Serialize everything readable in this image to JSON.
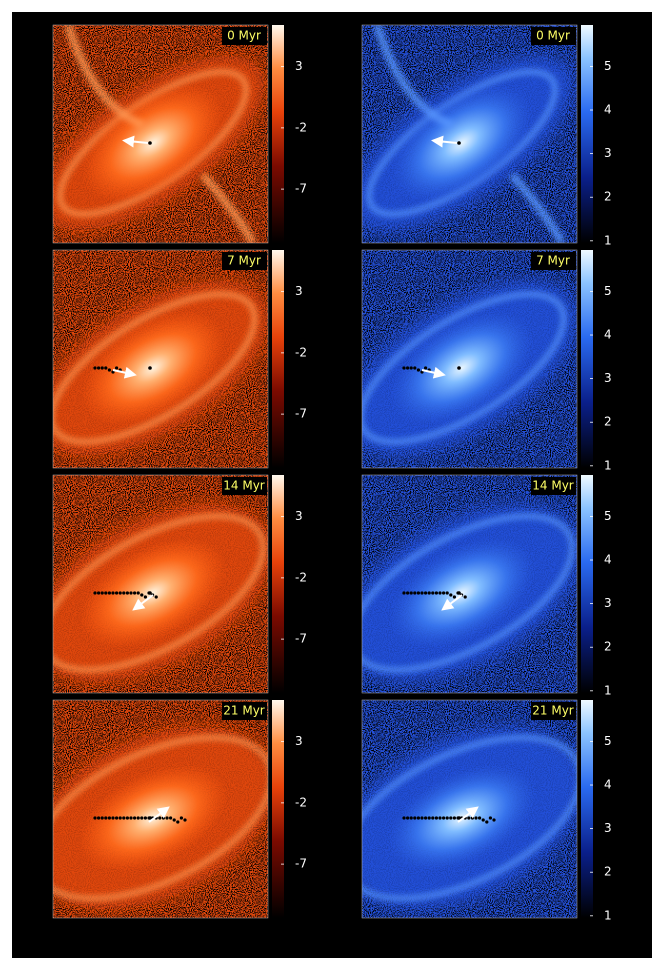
{
  "panels": {
    "times": [
      "0 Myr",
      "7 Myr",
      "14 Myr",
      "21 Myr"
    ],
    "left_colorbar": {
      "lim": [
        -11.4,
        6.4
      ],
      "ticks": [
        3,
        -2,
        -7
      ]
    },
    "right_colorbar": {
      "lim": [
        0.95,
        5.95
      ],
      "ticks": [
        5,
        4,
        3,
        2,
        1
      ]
    }
  }
}
